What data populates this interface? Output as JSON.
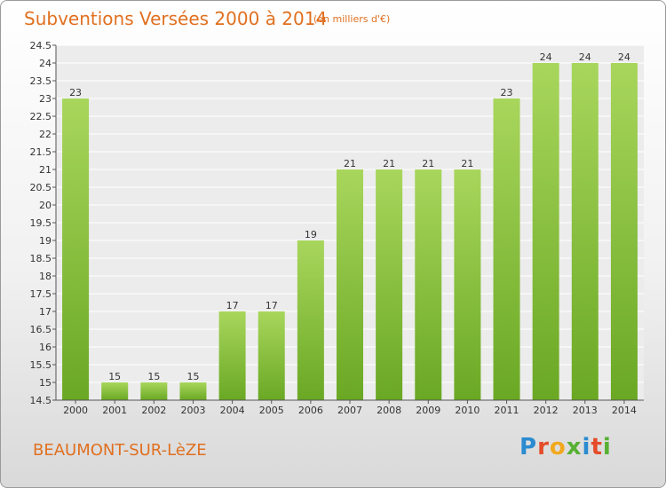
{
  "title": "Subventions Versées 2000 à 2014",
  "unit_note": "(en milliers d'€)",
  "commune": "BEAUMONT-SUR-LèZE",
  "logo": {
    "letters": [
      "P",
      "r",
      "o",
      "x",
      "i",
      "t",
      "i"
    ]
  },
  "colors": {
    "bar_light": "#a8d65c",
    "bar_dark": "#6aa824",
    "title": "#e07020"
  },
  "chart_data": {
    "type": "bar",
    "title": "Subventions Versées 2000 à 2014",
    "xlabel": "",
    "ylabel": "",
    "ylim": [
      14.5,
      24.5
    ],
    "grid": true,
    "yticks": [
      "14.5",
      "15",
      "15.5",
      "16",
      "16.5",
      "17",
      "17.5",
      "18",
      "18.5",
      "19",
      "19.5",
      "20",
      "20.5",
      "21",
      "21.5",
      "22",
      "22.5",
      "23",
      "23.5",
      "24",
      "24.5"
    ],
    "categories": [
      "2000",
      "2001",
      "2002",
      "2003",
      "2004",
      "2005",
      "2006",
      "2007",
      "2008",
      "2009",
      "2010",
      "2011",
      "2012",
      "2013",
      "2014"
    ],
    "values": [
      23,
      15,
      15,
      15,
      17,
      17,
      19,
      21,
      21,
      21,
      21,
      23,
      24,
      24,
      24
    ]
  }
}
